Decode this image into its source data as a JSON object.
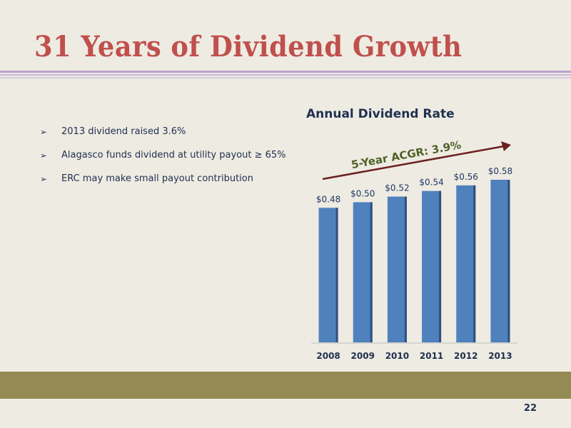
{
  "slide": {
    "title": "31 Years of Dividend Growth",
    "page_number": "22",
    "bullets": [
      "2013 dividend raised 3.6%",
      "Alagasco funds dividend at utility payout ≥ 65%",
      "ERC may make small payout contribution"
    ],
    "bullet_icon": "arrow-bullet-icon"
  },
  "chart_data": {
    "type": "bar",
    "title": "Annual Dividend Rate",
    "categories": [
      "2008",
      "2009",
      "2010",
      "2011",
      "2012",
      "2013"
    ],
    "values": [
      0.48,
      0.5,
      0.52,
      0.54,
      0.56,
      0.58
    ],
    "labels": [
      "$0.48",
      "$0.50",
      "$0.52",
      "$0.54",
      "$0.56",
      "$0.58"
    ],
    "ylim": [
      0,
      0.58
    ],
    "annotation": "5-Year ACGR: 3.9%",
    "colors": {
      "bar": "#4f81bd",
      "bar_side": "#2f4f7f",
      "arrow": "#6b2020",
      "annotation": "#4f6228"
    }
  }
}
